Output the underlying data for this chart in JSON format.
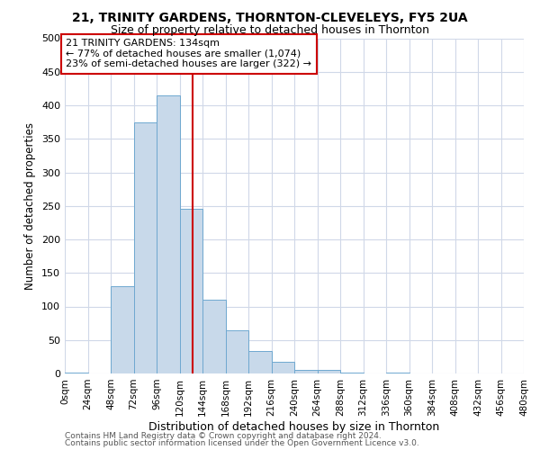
{
  "title": "21, TRINITY GARDENS, THORNTON-CLEVELEYS, FY5 2UA",
  "subtitle": "Size of property relative to detached houses in Thornton",
  "xlabel": "Distribution of detached houses by size in Thornton",
  "ylabel": "Number of detached properties",
  "bar_color": "#c8d9ea",
  "bar_edge_color": "#6fa8d0",
  "bar_heights": [
    2,
    0,
    130,
    375,
    415,
    245,
    110,
    65,
    33,
    17,
    6,
    6,
    2,
    0,
    2,
    0,
    0,
    0,
    0,
    0
  ],
  "bin_edges": [
    0,
    24,
    48,
    72,
    96,
    120,
    144,
    168,
    192,
    216,
    240,
    264,
    288,
    312,
    336,
    360,
    384,
    408,
    432,
    456,
    480
  ],
  "ylim": [
    0,
    500
  ],
  "yticks": [
    0,
    50,
    100,
    150,
    200,
    250,
    300,
    350,
    400,
    450,
    500
  ],
  "vline_x": 134,
  "vline_color": "#cc0000",
  "annotation_title": "21 TRINITY GARDENS: 134sqm",
  "annotation_line1": "← 77% of detached houses are smaller (1,074)",
  "annotation_line2": "23% of semi-detached houses are larger (322) →",
  "annotation_box_color": "#ffffff",
  "annotation_box_edge_color": "#cc0000",
  "footer_line1": "Contains HM Land Registry data © Crown copyright and database right 2024.",
  "footer_line2": "Contains public sector information licensed under the Open Government Licence v3.0.",
  "background_color": "#ffffff",
  "grid_color": "#d0d8e8"
}
